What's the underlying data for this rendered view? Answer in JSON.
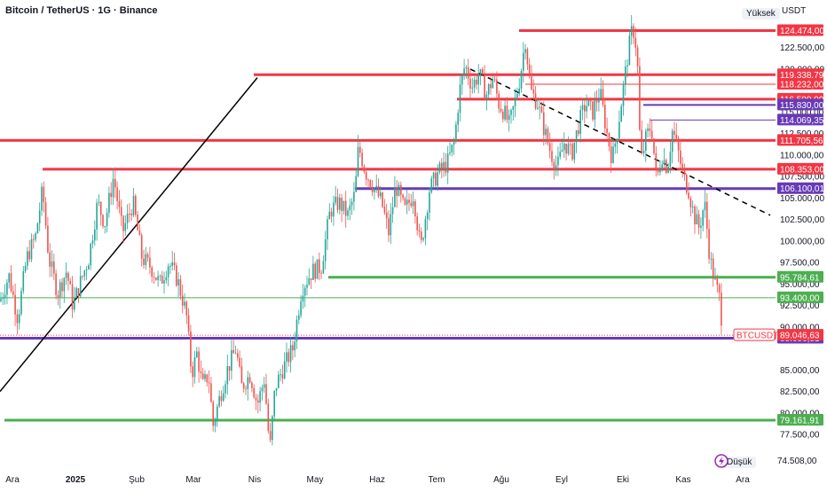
{
  "header": {
    "title": "Bitcoin / TetherUS · 1G · Binance",
    "currency": "USDT",
    "high_label": "Yüksek",
    "low_label": "Düşük"
  },
  "colors": {
    "up": "#26a69a",
    "down": "#ef5350",
    "red_line": "#f23645",
    "green_line": "#4caf50",
    "purple_line": "#673ab7",
    "current": "#f23645",
    "grid_text": "#131722"
  },
  "icons": [
    "lightning-icon"
  ],
  "chart_data": {
    "type": "candlestick",
    "title": "Bitcoin / TetherUS · 1G · Binance",
    "symbol": "BTCUSDT",
    "y_unit": "USDT",
    "ylim": [
      73700,
      127000
    ],
    "x_ticks": [
      "Ara",
      "2025",
      "Şub",
      "Mar",
      "Nis",
      "May",
      "Haz",
      "Tem",
      "Ağu",
      "Eyl",
      "Eki",
      "Kas",
      "Ara"
    ],
    "y_ticks": [
      "122.500,00",
      "120.000,00",
      "115.000,00",
      "112.500,00",
      "110.000,00",
      "107.500,00",
      "105.000,00",
      "102.500,00",
      "100.000,00",
      "97.500,00",
      "95.000,00",
      "92.500,00",
      "90.000,00",
      "85.000,00",
      "82.500,00",
      "80.000,00",
      "77.500,00"
    ],
    "price_path": [
      [
        0,
        93000
      ],
      [
        10,
        96000
      ],
      [
        20,
        91000
      ],
      [
        30,
        98000
      ],
      [
        40,
        100500
      ],
      [
        48,
        106000
      ],
      [
        55,
        98000
      ],
      [
        65,
        94000
      ],
      [
        75,
        96500
      ],
      [
        82,
        92500
      ],
      [
        90,
        95000
      ],
      [
        100,
        98000
      ],
      [
        110,
        104500
      ],
      [
        118,
        102000
      ],
      [
        128,
        107500
      ],
      [
        138,
        101000
      ],
      [
        150,
        104500
      ],
      [
        160,
        98000
      ],
      [
        170,
        97000
      ],
      [
        180,
        95000
      ],
      [
        190,
        97500
      ],
      [
        200,
        95500
      ],
      [
        210,
        91500
      ],
      [
        216,
        84500
      ],
      [
        222,
        87000
      ],
      [
        228,
        83000
      ],
      [
        235,
        84500
      ],
      [
        240,
        78500
      ],
      [
        248,
        82000
      ],
      [
        256,
        85000
      ],
      [
        266,
        87500
      ],
      [
        272,
        83000
      ],
      [
        282,
        84500
      ],
      [
        290,
        81000
      ],
      [
        298,
        84000
      ],
      [
        304,
        75500
      ],
      [
        310,
        83000
      ],
      [
        318,
        85000
      ],
      [
        330,
        87500
      ],
      [
        340,
        94500
      ],
      [
        352,
        96500
      ],
      [
        362,
        97000
      ],
      [
        372,
        103500
      ],
      [
        382,
        104500
      ],
      [
        392,
        103000
      ],
      [
        400,
        105500
      ],
      [
        404,
        111000
      ],
      [
        412,
        108000
      ],
      [
        420,
        106500
      ],
      [
        430,
        104500
      ],
      [
        438,
        101000
      ],
      [
        446,
        106500
      ],
      [
        456,
        103500
      ],
      [
        466,
        105500
      ],
      [
        474,
        99000
      ],
      [
        484,
        106000
      ],
      [
        494,
        108000
      ],
      [
        504,
        109000
      ],
      [
        512,
        111500
      ],
      [
        518,
        117500
      ],
      [
        524,
        120500
      ],
      [
        532,
        118000
      ],
      [
        540,
        119500
      ],
      [
        548,
        117000
      ],
      [
        556,
        119000
      ],
      [
        562,
        116000
      ],
      [
        568,
        115000
      ],
      [
        574,
        113500
      ],
      [
        580,
        116000
      ],
      [
        586,
        119000
      ],
      [
        592,
        123500
      ],
      [
        598,
        117500
      ],
      [
        606,
        116000
      ],
      [
        612,
        113500
      ],
      [
        620,
        110500
      ],
      [
        628,
        108500
      ],
      [
        636,
        111500
      ],
      [
        644,
        110000
      ],
      [
        652,
        113500
      ],
      [
        660,
        116000
      ],
      [
        668,
        115000
      ],
      [
        676,
        117500
      ],
      [
        684,
        112500
      ],
      [
        690,
        109500
      ],
      [
        696,
        113000
      ],
      [
        702,
        117500
      ],
      [
        708,
        122000
      ],
      [
        713,
        125000
      ],
      [
        718,
        122000
      ],
      [
        722,
        109000
      ],
      [
        728,
        112000
      ],
      [
        734,
        113500
      ],
      [
        740,
        107000
      ],
      [
        746,
        110000
      ],
      [
        752,
        108500
      ],
      [
        758,
        113000
      ],
      [
        764,
        110500
      ],
      [
        770,
        107500
      ],
      [
        776,
        106000
      ],
      [
        782,
        103000
      ],
      [
        788,
        101500
      ],
      [
        794,
        104500
      ],
      [
        800,
        98000
      ],
      [
        806,
        95000
      ],
      [
        812,
        93000
      ],
      [
        814,
        89046.63
      ]
    ],
    "horizontal_levels": [
      {
        "value": 124474.0,
        "label": "124.474,00",
        "color": "#f23645",
        "width": 3,
        "x_start": 585
      },
      {
        "value": 119338.79,
        "label": "119.338,79",
        "color": "#f23645",
        "width": 3,
        "x_start": 286
      },
      {
        "value": 118232.0,
        "label": "118.232,00",
        "color": "#f23645",
        "width": 1,
        "x_start": 592
      },
      {
        "value": 116500.0,
        "label": "116.500,00",
        "color": "#f23645",
        "width": 3,
        "x_start": 515
      },
      {
        "value": 115830.0,
        "label": "115.830,00",
        "color": "#673ab7",
        "width": 2,
        "x_start": 725
      },
      {
        "value": 114069.35,
        "label": "114.069,35",
        "color": "#673ab7",
        "width": 1,
        "x_start": 733
      },
      {
        "value": 111705.56,
        "label": "111.705,56",
        "color": "#f23645",
        "width": 3,
        "x_start": 0
      },
      {
        "value": 108353.0,
        "label": "108.353,00",
        "color": "#f23645",
        "width": 3,
        "x_start": 48
      },
      {
        "value": 106100.01,
        "label": "106.100,01",
        "color": "#673ab7",
        "width": 3,
        "x_start": 400
      },
      {
        "value": 95784.61,
        "label": "95.784,61",
        "color": "#4caf50",
        "width": 3,
        "x_start": 370
      },
      {
        "value": 93400.0,
        "label": "93.400,00",
        "color": "#4caf50",
        "width": 1,
        "x_start": 0
      },
      {
        "value": 88696.81,
        "label": "88.696,81",
        "color": "#673ab7",
        "width": 3,
        "x_start": 0
      },
      {
        "value": 79161.91,
        "label": "79.161,91",
        "color": "#4caf50",
        "width": 3,
        "x_start": 5
      }
    ],
    "current_price": {
      "symbol": "BTCUSDT",
      "value": 89046.63,
      "label": "89.046,63"
    },
    "session_high": {
      "label": "Yüksek"
    },
    "session_low": {
      "label": "Düşük",
      "value": 74508.0,
      "text": "74.508,00"
    },
    "trend_lines": [
      {
        "style": "solid",
        "color": "#000000",
        "from": [
          0,
          82500
        ],
        "to": [
          290,
          119000
        ]
      },
      {
        "style": "dashed",
        "color": "#000000",
        "from": [
          530,
          120000
        ],
        "to": [
          868,
          103000
        ]
      }
    ]
  }
}
